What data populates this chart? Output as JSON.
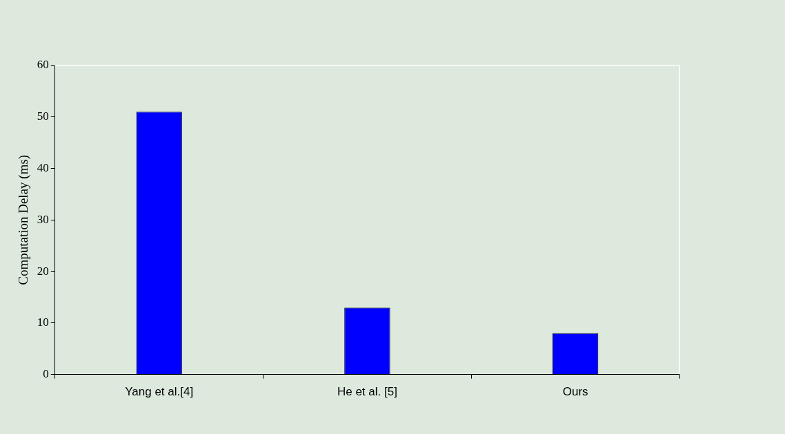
{
  "chart_data": {
    "type": "bar",
    "ylabel": "Computation Delay (ms)",
    "categories": [
      "Yang et al.[4]",
      "He et al. [5]",
      "Ours"
    ],
    "values": [
      51,
      13,
      8
    ],
    "color": "#0000ff",
    "ylim": [
      0,
      60
    ],
    "yticks": [
      0,
      10,
      20,
      30,
      40,
      50,
      60
    ],
    "grid": false,
    "legend": false
  }
}
